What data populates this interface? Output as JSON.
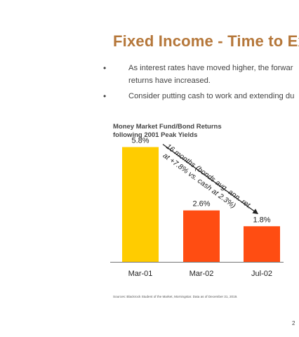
{
  "slide": {
    "title": "Fixed Income - Time to Ex",
    "bullets": [
      "As interest rates have moved higher, the forwar",
      "returns have increased.",
      "Consider putting cash to work and extending du"
    ],
    "source": "Sources: Blackrock Student of the Market, Morningstar. Data as of December 31, 2019.",
    "page_number": "2"
  },
  "chart_data": {
    "type": "bar",
    "title_lines": [
      "Money Market Fund/Bond Returns",
      "following 2001 Peak Yields"
    ],
    "categories": [
      "Mar-01",
      "Mar-02",
      "Jul-02"
    ],
    "values": [
      5.8,
      2.6,
      1.8
    ],
    "value_labels": [
      "5.8%",
      "2.6%",
      "1.8%"
    ],
    "ylim": [
      0,
      7.2
    ],
    "colors": [
      "#ffcc00",
      "#ff4d12",
      "#ff4d12"
    ],
    "annotation_lines": [
      "16 months (bonds avg. ann. ret.",
      "at +7.8% vs. cash at 2.3%)"
    ],
    "grid": false,
    "legend": "none"
  }
}
